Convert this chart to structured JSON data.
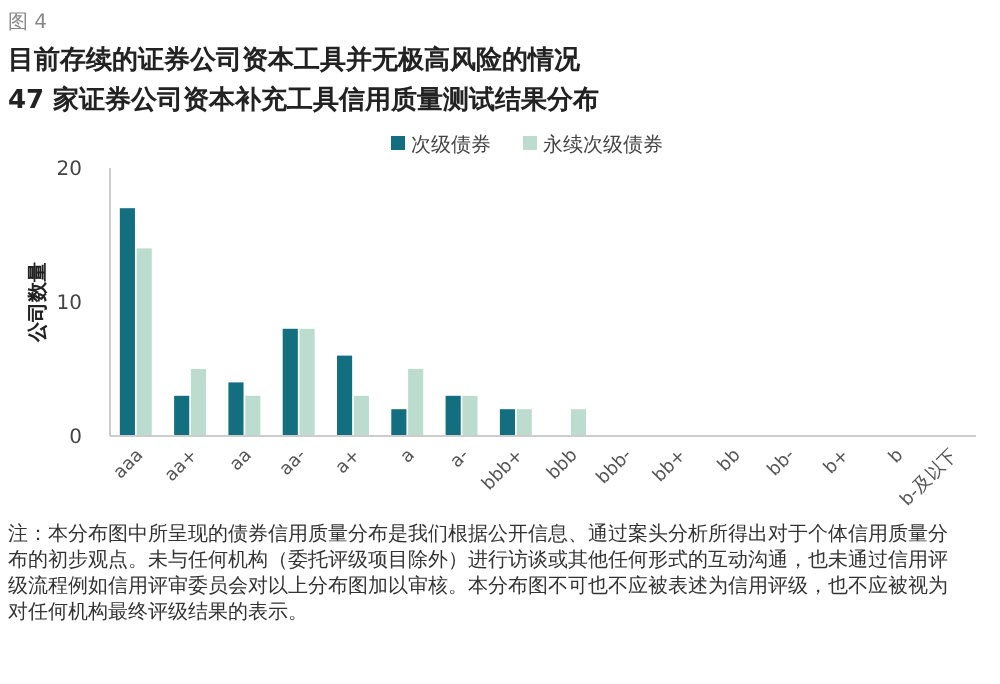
{
  "chart_data": {
    "type": "bar",
    "title": "目前存续的证券公司资本工具并无极高风险的情况",
    "subtitle": "47 家证券公司资本补充工具信用质量测试结果分布",
    "ylabel": "公司数量",
    "categories": [
      "aaa",
      "aa+",
      "aa",
      "aa-",
      "a+",
      "a",
      "a-",
      "bbb+",
      "bbb",
      "bbb-",
      "bb+",
      "bb",
      "bb-",
      "b+",
      "b",
      "b-及以下"
    ],
    "series": [
      {
        "name": "次级债券",
        "color": "#136f7f",
        "values": [
          17,
          3,
          4,
          8,
          6,
          2,
          3,
          2,
          0,
          0,
          0,
          0,
          0,
          0,
          0,
          0
        ]
      },
      {
        "name": "永续次级债券",
        "color": "#bddcd0",
        "values": [
          14,
          5,
          3,
          8,
          3,
          5,
          3,
          2,
          2,
          0,
          0,
          0,
          0,
          0,
          0,
          0
        ]
      }
    ],
    "ylim": [
      0,
      20
    ],
    "yticks": [
      0,
      10,
      20
    ],
    "grid": false,
    "legend": "top",
    "annotations": [
      "图 4",
      "注：本分布图中所呈现的债券信用质量分布是我们根据公开信息、通过案头分析所得出对于个体信用质量分布的初步观点。未与任何机构（委托评级项目除外）进行访谈或其他任何形式的互动沟通，也未通过信用评级流程例如信用评审委员会对以上分布图加以审核。本分布图不可也不应被表述为信用评级，也不应被视为对任何机构最终评级结果的表示。"
    ]
  }
}
